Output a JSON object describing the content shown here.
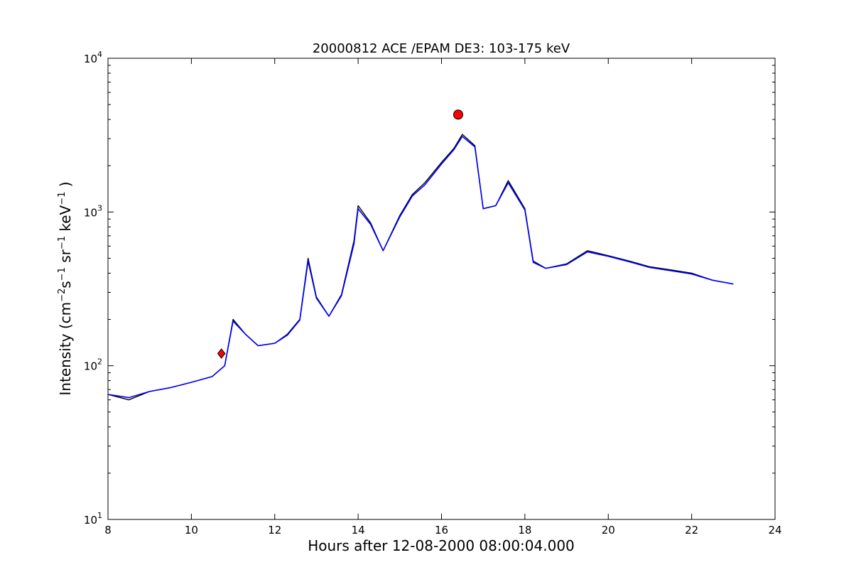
{
  "chart_data": {
    "type": "line",
    "title": "20000812 ACE /EPAM DE3: 103-175 keV",
    "xlabel": "Hours after 12-08-2000 08:00:04.000",
    "ylabel": "Intensity (cm$^{-2}$s$^{-1}$sr$^{-1}$keV$^{-1}$)",
    "ylabel_parts": {
      "prefix": "Intensity (cm",
      "exp1": "−2",
      "mid1": "s",
      "exp2": "−1",
      "mid2": " sr",
      "exp3": "−1",
      "mid3": " keV",
      "exp4": "−1",
      "suffix": " )"
    },
    "xlim": [
      8,
      24
    ],
    "ylim": [
      10,
      10000
    ],
    "yscale": "log",
    "grid": false,
    "x_ticks": [
      8,
      10,
      12,
      14,
      16,
      18,
      20,
      22,
      24
    ],
    "x_tick_labels": [
      "8",
      "10",
      "12",
      "14",
      "16",
      "18",
      "20",
      "22",
      "24"
    ],
    "y_ticks": [
      10,
      100,
      1000,
      10000
    ],
    "y_tick_labels": [
      {
        "base": "10",
        "exp": "1"
      },
      {
        "base": "10",
        "exp": "2"
      },
      {
        "base": "10",
        "exp": "3"
      },
      {
        "base": "10",
        "exp": "4"
      }
    ],
    "series": [
      {
        "color": "#000000",
        "x": [
          8.0,
          8.5,
          9.0,
          9.5,
          10.0,
          10.5,
          10.8,
          11.0,
          11.3,
          11.6,
          12.0,
          12.3,
          12.6,
          12.8,
          13.0,
          13.3,
          13.6,
          13.9,
          14.0,
          14.3,
          14.6,
          15.0,
          15.3,
          15.6,
          16.0,
          16.3,
          16.5,
          16.8,
          17.0,
          17.3,
          17.6,
          18.0,
          18.2,
          18.5,
          19.0,
          19.5,
          20.0,
          20.5,
          21.0,
          21.5,
          22.0,
          22.5,
          23.0
        ],
        "y": [
          65,
          60,
          68,
          72,
          78,
          85,
          100,
          200,
          160,
          135,
          140,
          160,
          200,
          500,
          280,
          210,
          290,
          650,
          1100,
          850,
          560,
          950,
          1300,
          1550,
          2100,
          2600,
          3200,
          2700,
          1050,
          1100,
          1600,
          1050,
          480,
          430,
          460,
          560,
          520,
          480,
          440,
          420,
          400,
          360,
          340
        ]
      },
      {
        "color": "#0000ff",
        "x": [
          8.0,
          8.5,
          9.0,
          9.5,
          10.0,
          10.5,
          10.8,
          11.0,
          11.3,
          11.6,
          12.0,
          12.3,
          12.6,
          12.8,
          13.0,
          13.3,
          13.6,
          13.9,
          14.0,
          14.3,
          14.6,
          15.0,
          15.3,
          15.6,
          16.0,
          16.3,
          16.5,
          16.8,
          17.0,
          17.3,
          17.6,
          18.0,
          18.2,
          18.5,
          19.0,
          19.5,
          20.0,
          20.5,
          21.0,
          21.5,
          22.0,
          22.5,
          23.0
        ],
        "y": [
          65,
          62,
          68,
          72,
          78,
          85,
          100,
          195,
          160,
          135,
          140,
          158,
          198,
          480,
          275,
          210,
          285,
          620,
          1050,
          830,
          560,
          930,
          1270,
          1500,
          2050,
          2550,
          3100,
          2650,
          1050,
          1100,
          1550,
          1030,
          470,
          430,
          455,
          550,
          515,
          475,
          435,
          415,
          395,
          360,
          340
        ]
      }
    ],
    "markers": [
      {
        "shape": "diamond",
        "color": "#ff0000",
        "x": 10.72,
        "y": 120
      },
      {
        "shape": "circle",
        "color": "#ff0000",
        "x": 16.4,
        "y": 4300
      }
    ]
  }
}
